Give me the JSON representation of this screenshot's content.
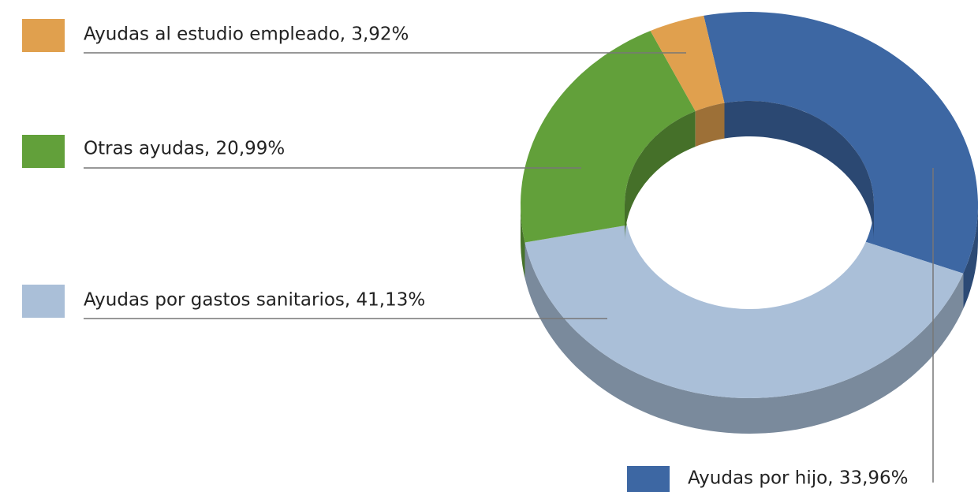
{
  "chart_data": {
    "type": "donut3d",
    "categories": [
      "Ayudas por hijo, 33,96%",
      "Ayudas por gastos sanitarios, 41,13%",
      "Otras ayudas, 20,99%",
      "Ayudas al estudio empleado, 3,92%"
    ],
    "values": [
      33.96,
      41.13,
      20.99,
      3.92
    ],
    "colors": [
      "#3d67a3",
      "#aabfd8",
      "#62a03a",
      "#e0a04e"
    ]
  }
}
